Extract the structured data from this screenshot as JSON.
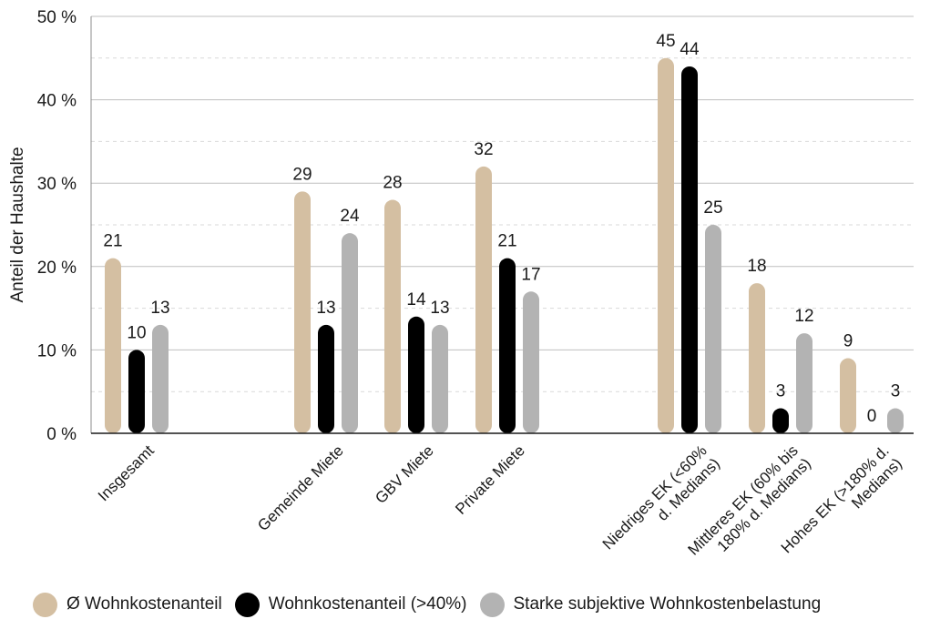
{
  "chart_data": {
    "type": "bar",
    "ylabel": "Anteil der Haushalte",
    "ylim": [
      0,
      50
    ],
    "y_ticks": [
      0,
      10,
      20,
      30,
      40,
      50
    ],
    "y_tick_labels": [
      "0 %",
      "10 %",
      "20 %",
      "30 %",
      "40 %",
      "50 %"
    ],
    "categories": [
      [
        "Insgesamt"
      ],
      [
        "Gemeinde Miete"
      ],
      [
        "GBV Miete"
      ],
      [
        "Private Miete"
      ],
      [
        "Niedriges EK (<60%",
        "d. Medians)"
      ],
      [
        "Mittleres EK (60% bis",
        "180% d. Medians)"
      ],
      [
        "Hohes EK (>180% d.",
        "Medians)"
      ]
    ],
    "series": [
      {
        "name": "Ø Wohnkostenanteil",
        "color": "#d4bfa2",
        "values": [
          21,
          29,
          28,
          32,
          45,
          18,
          9
        ]
      },
      {
        "name": "Wohnkostenanteil (>40%)",
        "color": "#000000",
        "values": [
          10,
          13,
          14,
          21,
          44,
          3,
          0
        ]
      },
      {
        "name": "Starke subjektive Wohnkostenbelastung",
        "color": "#b3b3b3",
        "values": [
          13,
          24,
          13,
          17,
          25,
          12,
          3
        ]
      }
    ],
    "grid": true,
    "legend_position": "bottom-left"
  }
}
